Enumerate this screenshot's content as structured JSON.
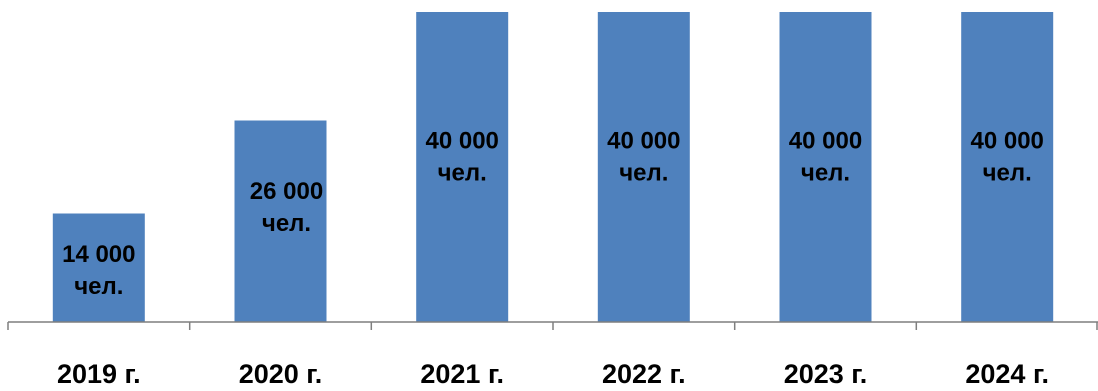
{
  "chart_data": {
    "type": "bar",
    "categories": [
      "2019 г.",
      "2020 г.",
      "2021 г.",
      "2022 г.",
      "2023 г.",
      "2024 г."
    ],
    "values": [
      14000,
      26000,
      40000,
      40000,
      40000,
      40000
    ],
    "data_labels": [
      [
        "14 000",
        "чел."
      ],
      [
        "26 000",
        "чел."
      ],
      [
        "40 000",
        "чел."
      ],
      [
        "40 000",
        "чел."
      ],
      [
        "40 000",
        "чел."
      ],
      [
        "40 000",
        "чел."
      ]
    ],
    "ylim": [
      0,
      40000
    ],
    "grid": false,
    "legend": "none",
    "colors": {
      "bar": "#4f81bd",
      "axis": "#7f7f7f",
      "text": "#000000"
    }
  }
}
